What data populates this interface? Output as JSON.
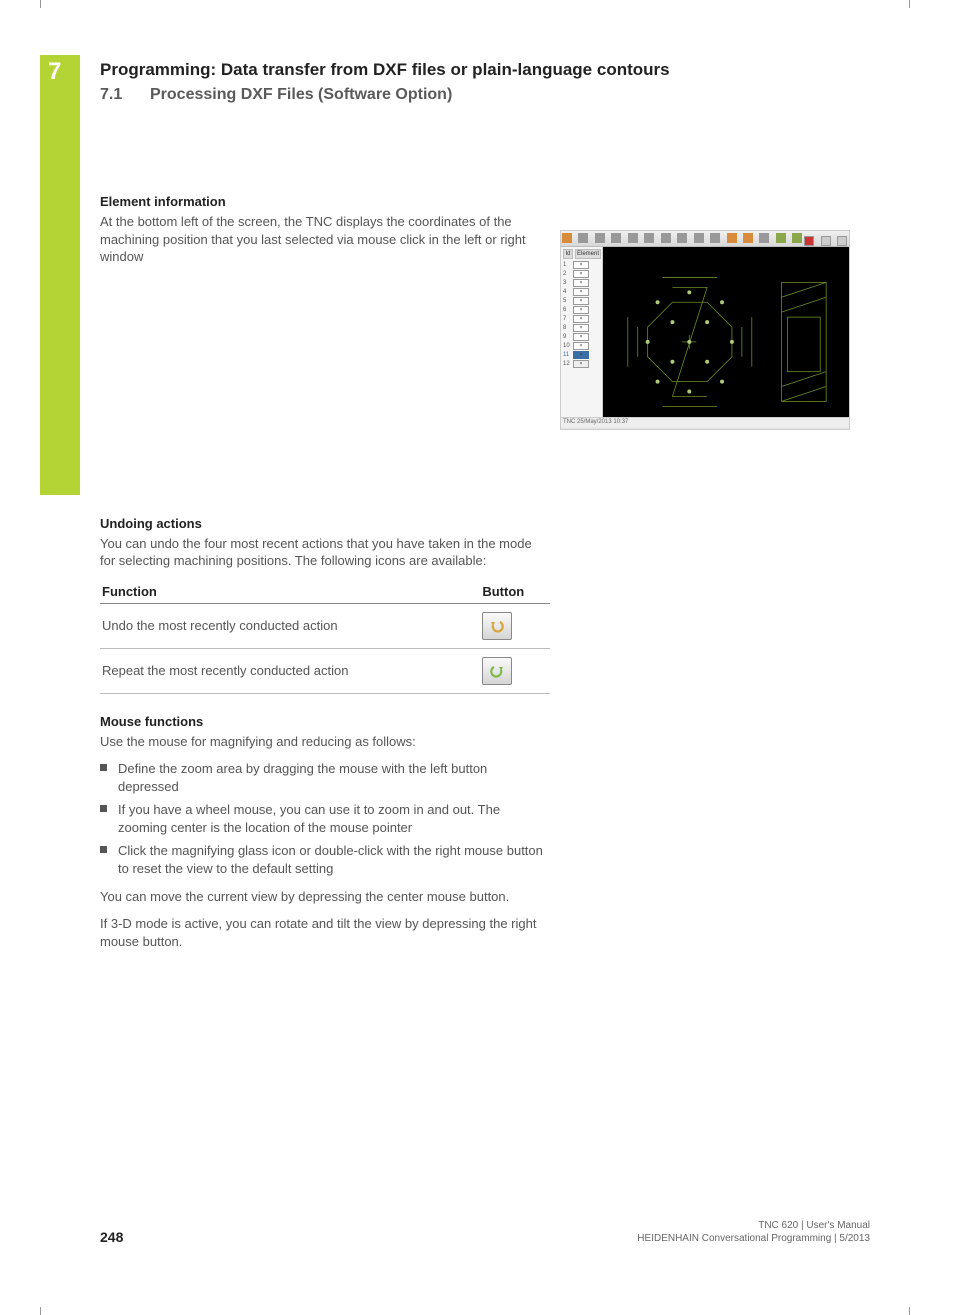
{
  "chapter": {
    "num": "7",
    "title": "Programming: Data transfer from DXF files or plain-language contours"
  },
  "section": {
    "num": "7.1",
    "title": "Processing DXF Files (Software Option)"
  },
  "element_info": {
    "heading": "Element information",
    "text": "At the bottom left of the screen, the TNC displays the coordinates of the machining position that you last selected via mouse click in the left or right window"
  },
  "screenshot": {
    "side_header": "Element",
    "id_header": "Id",
    "rows": [
      "1",
      "2",
      "3",
      "4",
      "5",
      "6",
      "7",
      "8",
      "9",
      "10",
      "11",
      "12"
    ],
    "selected_index": 10,
    "status": "TNC   25/May/2013  10:37",
    "canvas": {
      "bg": "#000000",
      "line_color": "#6b8e23",
      "marker_color": "#b0c97a"
    }
  },
  "undoing": {
    "heading": "Undoing actions",
    "text": "You can undo the four most recent actions that you have taken in the mode for selecting machining positions. The following icons are available:",
    "table": {
      "h1": "Function",
      "h2": "Button",
      "r1": "Undo the most recently conducted action",
      "r2": "Repeat the most recently conducted action",
      "undo_color": "#d9a33a",
      "redo_color": "#7fb84a"
    }
  },
  "mouse": {
    "heading": "Mouse functions",
    "intro": "Use the mouse for magnifying and reducing as follows:",
    "items": [
      "Define the zoom area by dragging the mouse with the left button depressed",
      "If you have a wheel mouse, you can use it to zoom in and out. The zooming center is the location of the mouse pointer",
      "Click the magnifying glass icon or double-click with the right mouse button to reset the view to the default setting"
    ],
    "after1": "You can move the current view by depressing the center mouse button.",
    "after2": "If 3-D mode is active, you can rotate and tilt the view by depressing the right mouse button."
  },
  "footer": {
    "page": "248",
    "line1": "TNC 620 | User's Manual",
    "line2": "HEIDENHAIN Conversational Programming | 5/2013"
  }
}
